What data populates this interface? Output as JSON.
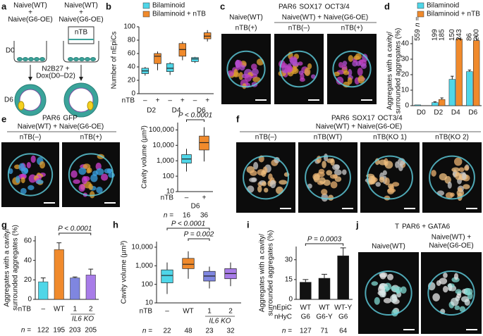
{
  "panels": {
    "a": {
      "label": "a",
      "left_group": [
        "Naive(WT)",
        "+",
        "Naive(G6-OE)"
      ],
      "right_group": [
        "Naive(WT)",
        "+",
        "Naive(G6-OE)"
      ],
      "ntb": "nTB",
      "day0": "D0",
      "day6": "D6",
      "treatment": [
        "N2B27 +",
        "Dox(D0–D2)"
      ]
    },
    "c": {
      "label": "c",
      "stains": [
        {
          "text": "PAR6",
          "color": "#4fc8dc"
        },
        {
          "text": "SOX17",
          "color": "#f0a020"
        },
        {
          "text": "OCT3/4",
          "color": "#d040d0"
        }
      ],
      "group1": "Naive(WT)",
      "group2": "Naive(WT) + Naive(G6-OE)",
      "conditions": [
        "nTB(+)",
        "nTB(–)",
        "nTB(+)"
      ]
    },
    "e": {
      "label": "e",
      "stains": [
        {
          "text": "PAR6",
          "color": "#f0a020"
        },
        {
          "text": "GFP",
          "color": "#2fb050"
        }
      ],
      "group": "Naive(WT) + Naive(G6-OE)",
      "conditions": [
        "nTB(–)",
        "nTB(+)"
      ]
    },
    "f": {
      "label": "f",
      "stains": [
        {
          "text": "PAR6",
          "color": "#4fc8dc"
        },
        {
          "text": "SOX17",
          "color": "#d040d0"
        },
        {
          "text": "OCT3/4",
          "color": "#f0a020"
        }
      ],
      "group": "Naive(WT) + Naive(G6-OE)",
      "conditions": [
        "nTB(–)",
        "nTB(WT)",
        "nTB(KO 1)",
        "nTB(KO 2)"
      ]
    },
    "j": {
      "label": "j",
      "stains": [
        {
          "text": "T",
          "color": "#e040c8"
        },
        {
          "text": "PAR6 + GATA6",
          "color": "#4fc8dc"
        }
      ],
      "condition1": "Naive(WT)",
      "condition2": [
        "Naive(WT) +",
        "Naive(G6-OE)"
      ]
    }
  },
  "chart_data": [
    {
      "type": "box",
      "label": "b",
      "ylabel": "Number of nEpiCs",
      "ylim": [
        0,
        100
      ],
      "yticks": [
        0,
        20,
        40,
        60,
        80,
        100
      ],
      "legend": [
        {
          "name": "Bilaminoid",
          "color": "#4fd6e8"
        },
        {
          "name": "Bilaminoid + nTB",
          "color": "#f08a2c"
        }
      ],
      "x_row_labels": [
        "nTB"
      ],
      "categories": [
        "–",
        "+",
        "–",
        "+",
        "–",
        "+"
      ],
      "groups": [
        "D2",
        "D4",
        "D6"
      ],
      "box_colors": [
        "#4fd6e8",
        "#f08a2c",
        "#4fd6e8",
        "#f08a2c",
        "#4fd6e8",
        "#f08a2c"
      ],
      "boxes": [
        {
          "min": 27,
          "q1": 30,
          "median": 34,
          "q3": 38,
          "max": 40
        },
        {
          "min": 35,
          "q1": 45,
          "median": 56,
          "q3": 60,
          "max": 63
        },
        {
          "min": 28,
          "q1": 33,
          "median": 38,
          "q3": 45,
          "max": 47
        },
        {
          "min": 50,
          "q1": 56,
          "median": 66,
          "q3": 75,
          "max": 78
        },
        {
          "min": 46,
          "q1": 48,
          "median": 52,
          "q3": 54,
          "max": 55
        },
        {
          "min": 78,
          "q1": 82,
          "median": 86,
          "q3": 91,
          "max": 95
        }
      ]
    },
    {
      "type": "bar",
      "label": "d",
      "ylabel": [
        "Aggregates with a cavity/",
        "surrounded aggregates (%)"
      ],
      "ylim": [
        0,
        45
      ],
      "yticks": [
        0,
        10,
        20,
        30,
        40
      ],
      "categories": [
        "D0",
        "D2",
        "D4",
        "D6"
      ],
      "n_label": "n =",
      "series": [
        {
          "name": "Bilaminoid",
          "color": "#4fd6e8",
          "values": [
            0.5,
            2,
            17,
            22
          ],
          "errors": [
            0,
            0.5,
            2,
            1
          ],
          "n_values": [
            559,
            199,
            150,
            86
          ]
        },
        {
          "name": "Bilaminoid + nTB",
          "color": "#f08a2c",
          "values": [
            null,
            4,
            43,
            42
          ],
          "errors": [
            null,
            1,
            0.5,
            3
          ],
          "n_values": [
            null,
            185,
            243,
            200
          ]
        }
      ]
    },
    {
      "type": "box",
      "label": null,
      "log_scale": true,
      "ylabel": "Cavity volume (µm³)",
      "ylim": [
        10,
        300000
      ],
      "yticks": [
        10,
        100,
        {
          "value": 1000,
          "label": "1,000"
        },
        {
          "value": 10000,
          "label": "10,000"
        },
        {
          "value": 100000,
          "label": "100,000"
        }
      ],
      "x_row_labels": [
        "nTB"
      ],
      "categories": [
        "–",
        "+"
      ],
      "groups": [
        "D6"
      ],
      "box_colors": [
        "#4fd6e8",
        "#f08a2c"
      ],
      "boxes": [
        {
          "min": 200,
          "q1": 700,
          "median": 1300,
          "q3": 2500,
          "max": 6000
        },
        {
          "min": 900,
          "q1": 5000,
          "median": 15000,
          "q3": 40000,
          "max": 150000
        }
      ],
      "n_label": "n =",
      "n_values": [
        16,
        36
      ],
      "annotations": [
        "P < 0.0001"
      ]
    },
    {
      "type": "bar",
      "label": "g",
      "ylabel": [
        "Aggregates with a cavity/",
        "surrounded aggregates (%)"
      ],
      "ylim": [
        0,
        65
      ],
      "yticks": [
        0,
        20,
        40,
        60
      ],
      "x_row_labels": [
        "nTB"
      ],
      "categories": [
        "–",
        "WT",
        "1",
        "2"
      ],
      "sub_label": "IL6 KO",
      "values": [
        18,
        51,
        22,
        25
      ],
      "errors": [
        4,
        7,
        1,
        6
      ],
      "colors": [
        "#4fd6e8",
        "#f08a2c",
        "#7f86e0",
        "#a87ce8"
      ],
      "n_label": "n =",
      "n_values": [
        122,
        195,
        203,
        205
      ],
      "annotations": [
        "P < 0.0001"
      ]
    },
    {
      "type": "box",
      "label": "h",
      "log_scale": true,
      "ylabel": "Cavity volume (µm³)",
      "ylim": [
        10,
        20000
      ],
      "yticks": [
        10,
        100,
        {
          "value": 1000,
          "label": "1,000"
        },
        {
          "value": 10000,
          "label": "10,000"
        }
      ],
      "x_row_labels": [
        "nTB"
      ],
      "categories": [
        "–",
        "WT",
        "1",
        "2"
      ],
      "sub_label": "IL6 KO",
      "box_colors": [
        "#4fd6e8",
        "#f08a2c",
        "#7f86e0",
        "#a87ce8"
      ],
      "boxes": [
        {
          "min": 30,
          "q1": 120,
          "median": 300,
          "q3": 600,
          "max": 1500
        },
        {
          "min": 200,
          "q1": 700,
          "median": 1200,
          "q3": 2500,
          "max": 6000
        },
        {
          "min": 60,
          "q1": 150,
          "median": 280,
          "q3": 500,
          "max": 900
        },
        {
          "min": 80,
          "q1": 200,
          "median": 380,
          "q3": 700,
          "max": 1500
        }
      ],
      "n_label": "n =",
      "n_values": [
        22,
        48,
        23,
        32
      ],
      "annotations": [
        "P < 0.0001",
        "P = 0.002"
      ]
    },
    {
      "type": "bar",
      "label": "i",
      "ylabel": [
        "Aggregates with a cavity/",
        "surrounded aggregates (%)"
      ],
      "ylim": [
        0,
        40
      ],
      "yticks": [
        0,
        15,
        30
      ],
      "x_row_labels": [
        "nEpiC",
        "nHyC"
      ],
      "categories": [
        "WT",
        "WT",
        "WT-Y"
      ],
      "categories2": [
        "G6",
        "G6-Y",
        "G6"
      ],
      "values": [
        13,
        16,
        33
      ],
      "errors": [
        2,
        3,
        6
      ],
      "colors": [
        "#111111",
        "#111111",
        "#111111"
      ],
      "n_label": "n =",
      "n_values": [
        127,
        71,
        64
      ],
      "annotations": [
        "P = 0.0003"
      ]
    }
  ]
}
